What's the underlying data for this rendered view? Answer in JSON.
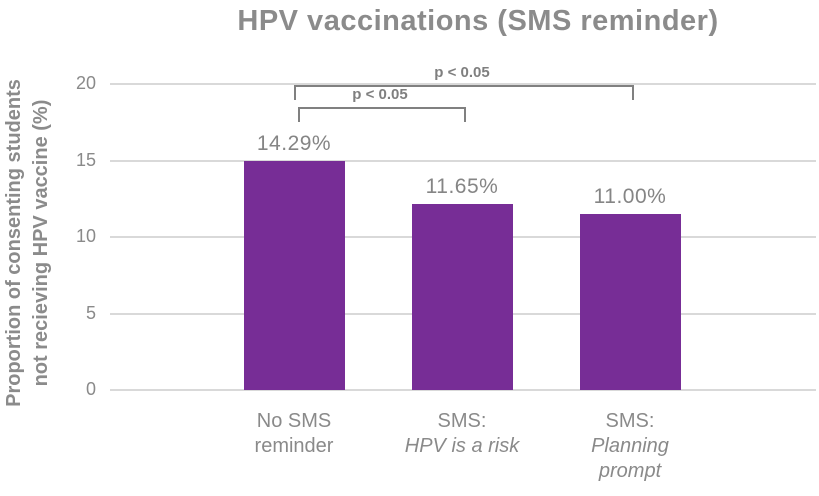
{
  "colors": {
    "bar": "#772D96",
    "text": "#8A8A8A",
    "bracket": "#7F7F7F",
    "gridline": "#D9D9D9"
  },
  "chart_data": {
    "type": "bar",
    "title": "HPV vaccinations (SMS reminder)",
    "ylabel": "Proportion of consenting students not recieving HPV vaccine (%)",
    "ylabel_lines": [
      "Proportion of consenting students",
      "not recieving HPV vaccine (%)"
    ],
    "xlabel": "",
    "ylim": [
      0,
      20
    ],
    "yticks": [
      0,
      5,
      10,
      15,
      20
    ],
    "grid": true,
    "legend": false,
    "bar_color": "#772D96",
    "categories": [
      {
        "id": "no-sms-reminder",
        "lines": [
          {
            "text": "No SMS",
            "italic": false
          },
          {
            "text": "reminder",
            "italic": false
          }
        ]
      },
      {
        "id": "sms-hpv-is-a-risk",
        "lines": [
          {
            "text": "SMS:",
            "italic": false
          },
          {
            "text": "HPV is a risk",
            "italic": true
          }
        ]
      },
      {
        "id": "sms-planning-prompt",
        "lines": [
          {
            "text": "SMS:",
            "italic": false
          },
          {
            "text": "Planning",
            "italic": true
          },
          {
            "text": "prompt",
            "italic": true
          }
        ]
      }
    ],
    "values": [
      14.29,
      11.65,
      11.0
    ],
    "data_labels": [
      "14.29%",
      "11.65%",
      "11.00%"
    ],
    "significance_brackets": [
      {
        "label": "p < 0.05",
        "from": 0,
        "to": 2,
        "row": 1
      },
      {
        "label": "p < 0.05",
        "from": 0,
        "to": 1,
        "row": 2
      }
    ]
  }
}
